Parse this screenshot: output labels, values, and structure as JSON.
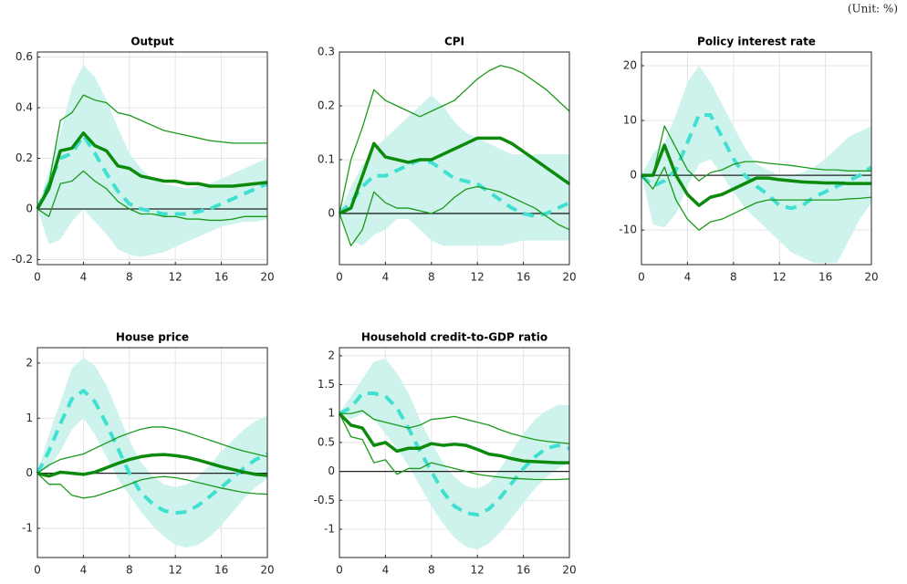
{
  "unit_note": "(Unit: %)",
  "chart_data": [
    {
      "type": "line",
      "title": "Output",
      "x": [
        0,
        1,
        2,
        3,
        4,
        5,
        6,
        7,
        8,
        9,
        10,
        11,
        12,
        13,
        14,
        15,
        16,
        17,
        18,
        19,
        20
      ],
      "xlim": [
        0,
        20
      ],
      "xticks": [
        0,
        4,
        8,
        12,
        16,
        20
      ],
      "ylim": [
        -0.22,
        0.62
      ],
      "yticks": [
        -0.2,
        0,
        0.2,
        0.4,
        0.6
      ],
      "grid": true,
      "zero_line": true,
      "band": {
        "color": "#cdf3ec",
        "upper": [
          0,
          0.15,
          0.3,
          0.48,
          0.57,
          0.52,
          0.43,
          0.32,
          0.22,
          0.16,
          0.12,
          0.1,
          0.09,
          0.08,
          0.09,
          0.1,
          0.12,
          0.14,
          0.16,
          0.18,
          0.2
        ],
        "lower": [
          0,
          -0.14,
          -0.12,
          -0.05,
          0,
          -0.05,
          -0.1,
          -0.16,
          -0.18,
          -0.19,
          -0.18,
          -0.17,
          -0.15,
          -0.13,
          -0.11,
          -0.09,
          -0.07,
          -0.06,
          -0.05,
          -0.05,
          -0.04
        ]
      },
      "series": [
        {
          "color": "#40e0d0",
          "dash": true,
          "width": 4,
          "values": [
            0,
            0.1,
            0.2,
            0.22,
            0.29,
            0.22,
            0.14,
            0.07,
            0.02,
            0,
            -0.01,
            -0.02,
            -0.02,
            -0.02,
            -0.01,
            0,
            0.02,
            0.04,
            0.06,
            0.08,
            0.1
          ]
        },
        {
          "color": "#1a9a1a",
          "dash": false,
          "width": 1.3,
          "values": [
            0,
            0.1,
            0.35,
            0.38,
            0.45,
            0.43,
            0.42,
            0.38,
            0.37,
            0.35,
            0.33,
            0.31,
            0.3,
            0.29,
            0.28,
            0.27,
            0.265,
            0.26,
            0.26,
            0.26,
            0.26
          ]
        },
        {
          "color": "#1a9a1a",
          "dash": false,
          "width": 1.3,
          "values": [
            0,
            -0.03,
            0.1,
            0.11,
            0.15,
            0.11,
            0.08,
            0.03,
            0,
            -0.02,
            -0.02,
            -0.03,
            -0.03,
            -0.04,
            -0.04,
            -0.045,
            -0.045,
            -0.04,
            -0.03,
            -0.03,
            -0.03
          ]
        },
        {
          "color": "#0b8a0b",
          "dash": false,
          "width": 3.5,
          "values": [
            0,
            0.08,
            0.23,
            0.24,
            0.3,
            0.25,
            0.23,
            0.17,
            0.16,
            0.13,
            0.12,
            0.11,
            0.11,
            0.1,
            0.1,
            0.09,
            0.09,
            0.09,
            0.095,
            0.1,
            0.105
          ]
        }
      ]
    },
    {
      "type": "line",
      "title": "CPI",
      "x": [
        0,
        1,
        2,
        3,
        4,
        5,
        6,
        7,
        8,
        9,
        10,
        11,
        12,
        13,
        14,
        15,
        16,
        17,
        18,
        19,
        20
      ],
      "xlim": [
        0,
        20
      ],
      "xticks": [
        0,
        4,
        8,
        12,
        16,
        20
      ],
      "ylim": [
        -0.095,
        0.3
      ],
      "yticks": [
        0,
        0.1,
        0.2,
        0.3
      ],
      "grid": true,
      "zero_line": true,
      "band": {
        "color": "#cdf3ec",
        "upper": [
          0,
          0.05,
          0.09,
          0.12,
          0.14,
          0.16,
          0.18,
          0.2,
          0.22,
          0.2,
          0.17,
          0.15,
          0.14,
          0.13,
          0.12,
          0.11,
          0.11,
          0.11,
          0.11,
          0.11,
          0.11
        ],
        "lower": [
          0,
          -0.05,
          -0.06,
          -0.04,
          -0.03,
          -0.01,
          -0.01,
          -0.03,
          -0.05,
          -0.06,
          -0.06,
          -0.06,
          -0.06,
          -0.06,
          -0.06,
          -0.055,
          -0.05,
          -0.05,
          -0.05,
          -0.05,
          -0.05
        ]
      },
      "series": [
        {
          "color": "#40e0d0",
          "dash": true,
          "width": 4,
          "values": [
            0,
            0.02,
            0.05,
            0.07,
            0.07,
            0.08,
            0.09,
            0.1,
            0.095,
            0.08,
            0.065,
            0.06,
            0.055,
            0.04,
            0.025,
            0.01,
            0,
            -0.005,
            0,
            0.01,
            0.02
          ]
        },
        {
          "color": "#1a9a1a",
          "dash": false,
          "width": 1.3,
          "values": [
            0,
            0.1,
            0.16,
            0.23,
            0.21,
            0.2,
            0.19,
            0.18,
            0.19,
            0.2,
            0.21,
            0.23,
            0.25,
            0.265,
            0.275,
            0.27,
            0.26,
            0.245,
            0.23,
            0.21,
            0.19
          ]
        },
        {
          "color": "#1a9a1a",
          "dash": false,
          "width": 1.3,
          "values": [
            0,
            -0.06,
            -0.03,
            0.04,
            0.02,
            0.01,
            0.01,
            0.005,
            0,
            0.01,
            0.03,
            0.045,
            0.05,
            0.045,
            0.04,
            0.03,
            0.02,
            0.01,
            -0.005,
            -0.02,
            -0.03
          ]
        },
        {
          "color": "#0b8a0b",
          "dash": false,
          "width": 3.5,
          "values": [
            0,
            0.01,
            0.07,
            0.13,
            0.105,
            0.1,
            0.095,
            0.1,
            0.1,
            0.11,
            0.12,
            0.13,
            0.14,
            0.14,
            0.14,
            0.13,
            0.115,
            0.1,
            0.085,
            0.07,
            0.055
          ]
        }
      ]
    },
    {
      "type": "line",
      "title": "Policy interest rate",
      "x": [
        0,
        1,
        2,
        3,
        4,
        5,
        6,
        7,
        8,
        9,
        10,
        11,
        12,
        13,
        14,
        15,
        16,
        17,
        18,
        19,
        20
      ],
      "xlim": [
        0,
        20
      ],
      "xticks": [
        0,
        4,
        8,
        12,
        16,
        20
      ],
      "ylim": [
        -16.3,
        22.5
      ],
      "yticks": [
        -10,
        0,
        10,
        20
      ],
      "grid": true,
      "zero_line": true,
      "band": {
        "color": "#cdf3ec",
        "upper": [
          0,
          4,
          6,
          11,
          17,
          20,
          17,
          13,
          9,
          5,
          2,
          1,
          0,
          0,
          0.5,
          1.5,
          3,
          5,
          7,
          8,
          9
        ],
        "lower": [
          0,
          -9,
          -9.5,
          -7,
          -2,
          2,
          3,
          0,
          -3,
          -6,
          -8,
          -10,
          -12,
          -14,
          -15,
          -16,
          -16,
          -16,
          -12,
          -8,
          -5
        ]
      },
      "series": [
        {
          "color": "#40e0d0",
          "dash": true,
          "width": 4,
          "values": [
            0,
            -2,
            -1,
            1,
            6,
            11,
            11,
            7,
            3,
            0,
            -2,
            -3.5,
            -5.5,
            -6,
            -5.5,
            -4,
            -3,
            -2,
            -1,
            0,
            1.5
          ]
        },
        {
          "color": "#1a9a1a",
          "dash": false,
          "width": 1.3,
          "values": [
            0,
            0,
            9,
            5,
            1,
            -1,
            0.5,
            1,
            2,
            2.5,
            2.5,
            2.2,
            2,
            1.8,
            1.5,
            1.2,
            1,
            1,
            0.8,
            0.8,
            0.8
          ]
        },
        {
          "color": "#1a9a1a",
          "dash": false,
          "width": 1.3,
          "values": [
            0,
            -2.5,
            1.5,
            -4.5,
            -8,
            -10,
            -8.5,
            -8,
            -7,
            -6,
            -5,
            -4.5,
            -4.5,
            -4.5,
            -4.5,
            -4.5,
            -4.5,
            -4.5,
            -4.3,
            -4.2,
            -4
          ]
        },
        {
          "color": "#0b8a0b",
          "dash": false,
          "width": 3.5,
          "values": [
            0,
            0,
            5.5,
            0,
            -3.5,
            -5.5,
            -4,
            -3.5,
            -2.5,
            -1.5,
            -0.5,
            -0.5,
            -0.8,
            -1,
            -1.2,
            -1.3,
            -1.4,
            -1.4,
            -1.5,
            -1.5,
            -1.5
          ]
        }
      ]
    },
    {
      "type": "line",
      "title": "House price",
      "x": [
        0,
        1,
        2,
        3,
        4,
        5,
        6,
        7,
        8,
        9,
        10,
        11,
        12,
        13,
        14,
        15,
        16,
        17,
        18,
        19,
        20
      ],
      "xlim": [
        0,
        20
      ],
      "xticks": [
        0,
        4,
        8,
        12,
        16,
        20
      ],
      "ylim": [
        -1.53,
        2.28
      ],
      "yticks": [
        -1,
        0,
        1,
        2
      ],
      "grid": true,
      "zero_line": true,
      "band": {
        "color": "#cdf3ec",
        "upper": [
          0,
          0.7,
          1.3,
          1.9,
          2.1,
          1.95,
          1.6,
          1.1,
          0.6,
          0.2,
          -0.05,
          -0.2,
          -0.25,
          -0.2,
          -0.05,
          0.15,
          0.4,
          0.6,
          0.8,
          0.95,
          1.05
        ],
        "lower": [
          0,
          0.1,
          0.4,
          0.8,
          1,
          0.7,
          0.3,
          -0.1,
          -0.4,
          -0.7,
          -0.95,
          -1.15,
          -1.3,
          -1.35,
          -1.3,
          -1.15,
          -0.95,
          -0.7,
          -0.45,
          -0.25,
          -0.1
        ]
      },
      "series": [
        {
          "color": "#40e0d0",
          "dash": true,
          "width": 4,
          "values": [
            0,
            0.4,
            0.9,
            1.35,
            1.5,
            1.3,
            0.9,
            0.45,
            0,
            -0.35,
            -0.55,
            -0.68,
            -0.72,
            -0.7,
            -0.58,
            -0.42,
            -0.25,
            -0.08,
            0.1,
            0.25,
            0.35
          ]
        },
        {
          "color": "#1a9a1a",
          "dash": false,
          "width": 1.3,
          "values": [
            0,
            0.15,
            0.25,
            0.3,
            0.35,
            0.45,
            0.55,
            0.65,
            0.73,
            0.8,
            0.84,
            0.84,
            0.8,
            0.74,
            0.67,
            0.6,
            0.53,
            0.46,
            0.4,
            0.35,
            0.3
          ]
        },
        {
          "color": "#1a9a1a",
          "dash": false,
          "width": 1.3,
          "values": [
            0,
            -0.2,
            -0.2,
            -0.4,
            -0.45,
            -0.42,
            -0.35,
            -0.28,
            -0.2,
            -0.12,
            -0.08,
            -0.06,
            -0.08,
            -0.12,
            -0.17,
            -0.22,
            -0.27,
            -0.31,
            -0.35,
            -0.37,
            -0.38
          ]
        },
        {
          "color": "#0b8a0b",
          "dash": false,
          "width": 3.5,
          "values": [
            0,
            -0.05,
            0.02,
            0,
            -0.02,
            0.02,
            0.1,
            0.18,
            0.25,
            0.3,
            0.33,
            0.34,
            0.32,
            0.29,
            0.24,
            0.18,
            0.12,
            0.07,
            0.02,
            -0.02,
            -0.04
          ]
        }
      ]
    },
    {
      "type": "line",
      "title": "Household credit-to-GDP ratio",
      "x": [
        0,
        1,
        2,
        3,
        4,
        5,
        6,
        7,
        8,
        9,
        10,
        11,
        12,
        13,
        14,
        15,
        16,
        17,
        18,
        19,
        20
      ],
      "xlim": [
        0,
        20
      ],
      "xticks": [
        0,
        4,
        8,
        12,
        16,
        20
      ],
      "ylim": [
        -1.49,
        2.14
      ],
      "yticks": [
        -1,
        -0.5,
        0,
        0.5,
        1,
        1.5,
        2
      ],
      "grid": true,
      "zero_line": true,
      "band": {
        "color": "#cdf3ec",
        "upper": [
          1,
          1.3,
          1.6,
          1.9,
          1.95,
          1.7,
          1.35,
          0.9,
          0.5,
          0.15,
          -0.1,
          -0.25,
          -0.3,
          -0.2,
          0.05,
          0.35,
          0.65,
          0.9,
          1.05,
          1.15,
          1.15
        ],
        "lower": [
          1,
          0.9,
          1,
          0.9,
          0.65,
          0.4,
          0.1,
          -0.25,
          -0.6,
          -0.9,
          -1.15,
          -1.3,
          -1.35,
          -1.25,
          -1.05,
          -0.8,
          -0.55,
          -0.3,
          -0.1,
          0.05,
          0.15
        ]
      },
      "series": [
        {
          "color": "#40e0d0",
          "dash": true,
          "width": 4,
          "values": [
            1,
            1.1,
            1.35,
            1.35,
            1.3,
            1.1,
            0.75,
            0.35,
            0,
            -0.35,
            -0.6,
            -0.72,
            -0.75,
            -0.65,
            -0.45,
            -0.2,
            0.05,
            0.25,
            0.4,
            0.45,
            0.4
          ]
        },
        {
          "color": "#1a9a1a",
          "dash": false,
          "width": 1.3,
          "values": [
            1,
            1,
            1.05,
            0.9,
            0.85,
            0.8,
            0.75,
            0.8,
            0.9,
            0.92,
            0.95,
            0.9,
            0.85,
            0.8,
            0.72,
            0.65,
            0.6,
            0.55,
            0.52,
            0.5,
            0.48
          ]
        },
        {
          "color": "#1a9a1a",
          "dash": false,
          "width": 1.3,
          "values": [
            1,
            0.6,
            0.55,
            0.15,
            0.2,
            -0.05,
            0.05,
            0.05,
            0.15,
            0.1,
            0.05,
            0,
            -0.05,
            -0.08,
            -0.1,
            -0.12,
            -0.13,
            -0.14,
            -0.14,
            -0.14,
            -0.13
          ]
        },
        {
          "color": "#0b8a0b",
          "dash": false,
          "width": 3.5,
          "values": [
            1,
            0.8,
            0.75,
            0.45,
            0.5,
            0.35,
            0.4,
            0.4,
            0.48,
            0.45,
            0.47,
            0.45,
            0.38,
            0.3,
            0.27,
            0.22,
            0.18,
            0.17,
            0.16,
            0.15,
            0.15
          ]
        }
      ]
    }
  ]
}
